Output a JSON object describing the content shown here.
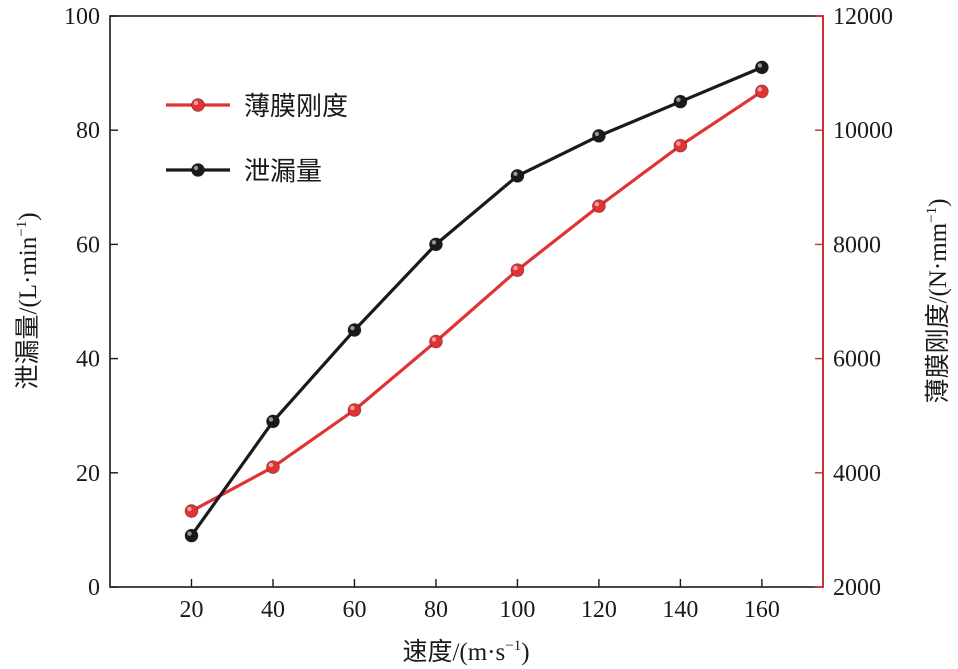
{
  "chart_data": {
    "type": "line",
    "x_axis": {
      "label": "速度/(m·s",
      "label_sup": "−1",
      "label_close": ")",
      "ticks": [
        20,
        40,
        60,
        80,
        100,
        120,
        140,
        160
      ],
      "range": [
        0,
        175
      ]
    },
    "y_left": {
      "label": "泄漏量/(L·min",
      "label_sup": "−1",
      "label_close": ")",
      "ticks": [
        0,
        20,
        40,
        60,
        80,
        100
      ],
      "range": [
        0,
        100
      ],
      "color": "#1a1a1a"
    },
    "y_right": {
      "label": "薄膜刚度/(N·mm",
      "label_sup": "−1",
      "label_close": ")",
      "ticks": [
        2000,
        4000,
        6000,
        8000,
        10000,
        12000
      ],
      "range": [
        2000,
        12000
      ],
      "color": "#d42a2a"
    },
    "legend_position": "top-left",
    "series": [
      {
        "name": "薄膜刚度",
        "axis": "right",
        "color": "#e03434",
        "x": [
          20,
          40,
          60,
          80,
          100,
          120,
          140,
          160
        ],
        "values": [
          3330,
          4100,
          5100,
          6300,
          7550,
          8670,
          9730,
          10680
        ]
      },
      {
        "name": "泄漏量",
        "axis": "left",
        "color": "#1a1a1a",
        "x": [
          20,
          40,
          60,
          80,
          100,
          120,
          140,
          160
        ],
        "values": [
          9,
          29,
          45,
          60,
          72,
          79,
          85,
          91
        ]
      }
    ]
  }
}
